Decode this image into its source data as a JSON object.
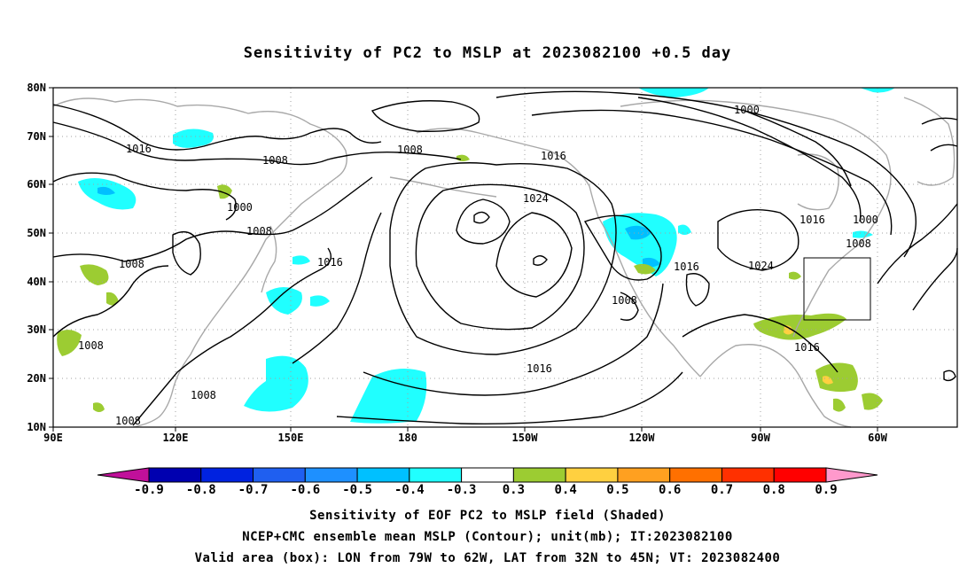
{
  "title": "Sensitivity of PC2 to MSLP at 2023082100 +0.5 day",
  "lat_labels": [
    "80N",
    "70N",
    "60N",
    "50N",
    "40N",
    "30N",
    "20N",
    "10N"
  ],
  "lon_labels": [
    "90E",
    "120E",
    "150E",
    "180",
    "150W",
    "120W",
    "90W",
    "60W"
  ],
  "contour_labels": [
    "1016",
    "1008",
    "1008",
    "1000",
    "1008",
    "1008",
    "1016",
    "1016",
    "1024",
    "1000",
    "1016",
    "1000",
    "1008",
    "1016",
    "1024",
    "1008",
    "1016",
    "1008",
    "1008",
    "1008",
    "1016"
  ],
  "colorbar": {
    "ticks": [
      "-0.9",
      "-0.8",
      "-0.7",
      "-0.6",
      "-0.5",
      "-0.4",
      "-0.3",
      "0.3",
      "0.4",
      "0.5",
      "0.6",
      "0.7",
      "0.8",
      "0.9"
    ],
    "colors": [
      "#c0109a",
      "#0000b0",
      "#0022e0",
      "#1f5ff0",
      "#1e90ff",
      "#00c0ff",
      "#20ffff",
      "#ffffff",
      "#9ccc32",
      "#ffd040",
      "#ffa020",
      "#ff7000",
      "#ff3000",
      "#ff0000",
      "#ff99cc"
    ]
  },
  "footer": {
    "line1": "Sensitivity of EOF PC2 to MSLP field (Shaded)",
    "line2": "NCEP+CMC ensemble mean MSLP (Contour); unit(mb); IT:2023082100",
    "line3": "Valid area (box): LON from 79W to 62W, LAT from 32N to 45N; VT: 2023082400"
  }
}
